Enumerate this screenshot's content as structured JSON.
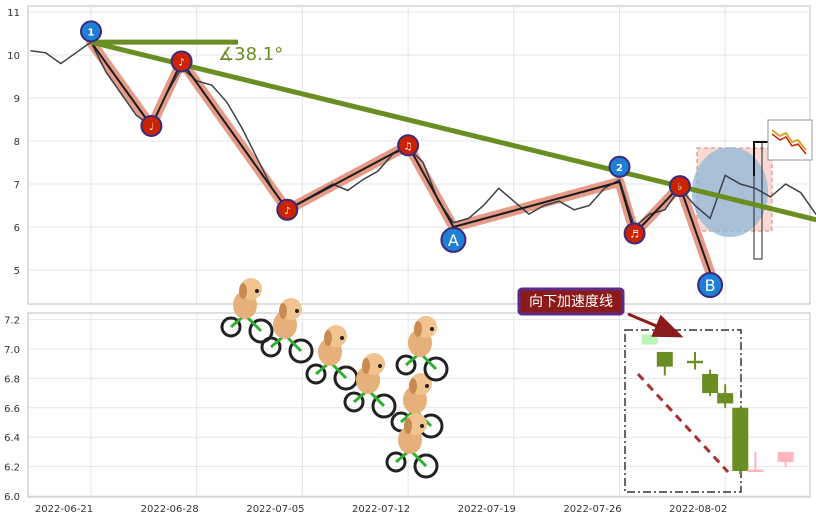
{
  "colors": {
    "price_line": "#3b3f46",
    "wave_outline": "#e59b88",
    "wave_line": "#1c1c1c",
    "trendline": "#6b8e23",
    "marker_red": "#cc2200",
    "marker_blue": "#1f7fd6",
    "annotation_bg": "#8b1a1a",
    "annotation_border": "#5b2a8a",
    "candle_green": "#6b8e23",
    "candle_pink": "#ffb6c1",
    "candle_light_green": "#b9f5b9",
    "highlight_blue": "#8fb7d8",
    "highlight_red": "#f7c9c0"
  },
  "chart_data": [
    {
      "type": "line",
      "panel": "upper",
      "y_ticks": [
        "5",
        "6",
        "7",
        "8",
        "9",
        "10",
        "11"
      ],
      "ylim": [
        4.2,
        11.0
      ],
      "x_range": [
        "2022-06-17",
        "2022-08-10"
      ],
      "grid": true,
      "series": [
        {
          "values": [
            [
              "2022-06-17",
              10.1
            ],
            [
              "2022-06-18",
              10.05
            ],
            [
              "2022-06-19",
              9.8
            ],
            [
              "2022-06-20",
              10.05
            ],
            [
              "2022-06-21",
              10.3
            ],
            [
              "2022-06-22",
              9.6
            ],
            [
              "2022-06-23",
              9.1
            ],
            [
              "2022-06-24",
              8.6
            ],
            [
              "2022-06-25",
              8.35
            ],
            [
              "2022-06-26",
              9.1
            ],
            [
              "2022-06-27",
              9.7
            ],
            [
              "2022-06-28",
              9.4
            ],
            [
              "2022-06-29",
              9.3
            ],
            [
              "2022-06-30",
              8.9
            ],
            [
              "2022-07-01",
              8.3
            ],
            [
              "2022-07-02",
              7.6
            ],
            [
              "2022-07-03",
              6.9
            ],
            [
              "2022-07-04",
              6.4
            ],
            [
              "2022-07-05",
              6.6
            ],
            [
              "2022-07-06",
              6.8
            ],
            [
              "2022-07-07",
              7.0
            ],
            [
              "2022-07-08",
              6.85
            ],
            [
              "2022-07-09",
              7.1
            ],
            [
              "2022-07-10",
              7.3
            ],
            [
              "2022-07-11",
              7.7
            ],
            [
              "2022-07-12",
              7.85
            ],
            [
              "2022-07-13",
              7.5
            ],
            [
              "2022-07-14",
              6.6
            ],
            [
              "2022-07-15",
              6.1
            ],
            [
              "2022-07-16",
              6.2
            ],
            [
              "2022-07-17",
              6.5
            ],
            [
              "2022-07-18",
              6.9
            ],
            [
              "2022-07-19",
              6.6
            ],
            [
              "2022-07-20",
              6.3
            ],
            [
              "2022-07-21",
              6.5
            ],
            [
              "2022-07-22",
              6.6
            ],
            [
              "2022-07-23",
              6.4
            ],
            [
              "2022-07-24",
              6.5
            ],
            [
              "2022-07-25",
              6.9
            ],
            [
              "2022-07-26",
              7.1
            ],
            [
              "2022-07-27",
              6.0
            ],
            [
              "2022-07-28",
              6.3
            ],
            [
              "2022-07-29",
              6.4
            ],
            [
              "2022-07-30",
              6.9
            ],
            [
              "2022-07-31",
              6.5
            ],
            [
              "2022-08-01",
              6.2
            ],
            [
              "2022-08-02",
              7.2
            ],
            [
              "2022-08-03",
              7.0
            ],
            [
              "2022-08-04",
              6.9
            ],
            [
              "2022-08-05",
              6.7
            ],
            [
              "2022-08-06",
              7.0
            ],
            [
              "2022-08-07",
              6.8
            ],
            [
              "2022-08-08",
              6.3
            ],
            [
              "2022-08-09",
              6.1
            ],
            [
              "2022-08-10",
              6.2
            ]
          ]
        }
      ],
      "wave_points": [
        [
          "2022-06-21",
          10.3
        ],
        [
          "2022-06-25",
          8.35
        ],
        [
          "2022-06-27",
          9.85
        ],
        [
          "2022-07-04",
          6.4
        ],
        [
          "2022-07-12",
          7.9
        ],
        [
          "2022-07-15",
          6.0
        ],
        [
          "2022-07-26",
          7.05
        ],
        [
          "2022-07-27",
          5.85
        ],
        [
          "2022-07-30",
          6.95
        ],
        [
          "2022-08-01",
          4.95
        ]
      ],
      "trendline": [
        [
          "2022-06-21",
          10.3
        ],
        [
          "2022-08-10",
          6.0
        ]
      ],
      "angle_label": "∡38.1°",
      "markers": [
        {
          "label": "1",
          "style": "blue",
          "date": "2022-06-21",
          "value": 10.55
        },
        {
          "label": "♩",
          "style": "red",
          "date": "2022-06-25",
          "value": 8.35
        },
        {
          "label": "♪",
          "style": "red",
          "date": "2022-06-27",
          "value": 9.85
        },
        {
          "label": "♪",
          "style": "red",
          "date": "2022-07-04",
          "value": 6.4
        },
        {
          "label": "♫",
          "style": "red",
          "date": "2022-07-12",
          "value": 7.9
        },
        {
          "label": "A",
          "style": "blue-big",
          "date": "2022-07-15",
          "value": 5.7
        },
        {
          "label": "2",
          "style": "blue",
          "date": "2022-07-26",
          "value": 7.4
        },
        {
          "label": "♬",
          "style": "red",
          "date": "2022-07-27",
          "value": 5.85
        },
        {
          "label": "♭",
          "style": "red",
          "date": "2022-07-30",
          "value": 6.95
        },
        {
          "label": "B",
          "style": "blue-big",
          "date": "2022-08-01",
          "value": 4.65
        }
      ]
    },
    {
      "type": "candlestick",
      "panel": "lower",
      "y_ticks": [
        "6.0",
        "6.2",
        "6.4",
        "6.6",
        "6.8",
        "7.0",
        "7.2"
      ],
      "ylim": [
        6.0,
        7.25
      ],
      "x_ticks": [
        "2022-06-21",
        "2022-06-28",
        "2022-07-05",
        "2022-07-12",
        "2022-07-19",
        "2022-07-26",
        "2022-08-02"
      ],
      "grid": true,
      "candles": [
        {
          "date": "2022-07-28",
          "open": 7.03,
          "close": 7.1,
          "high": 7.1,
          "low": 7.03,
          "style": "light-green"
        },
        {
          "date": "2022-07-29",
          "open": 6.88,
          "close": 6.98,
          "high": 6.98,
          "low": 6.82,
          "style": "green"
        },
        {
          "date": "2022-07-31",
          "open": 6.92,
          "close": 6.92,
          "high": 6.98,
          "low": 6.86,
          "style": "green"
        },
        {
          "date": "2022-08-01",
          "open": 6.83,
          "close": 6.7,
          "high": 6.86,
          "low": 6.68,
          "style": "green"
        },
        {
          "date": "2022-08-02",
          "open": 6.7,
          "close": 6.63,
          "high": 6.76,
          "low": 6.6,
          "style": "green"
        },
        {
          "date": "2022-08-03",
          "open": 6.6,
          "close": 6.17,
          "high": 6.6,
          "low": 6.15,
          "style": "green"
        },
        {
          "date": "2022-08-04",
          "open": 6.18,
          "close": 6.17,
          "high": 6.3,
          "low": 6.17,
          "style": "pink"
        },
        {
          "date": "2022-08-06",
          "open": 6.3,
          "close": 6.23,
          "high": 6.3,
          "low": 6.2,
          "style": "pink"
        }
      ],
      "annotation": "向下加速度线"
    }
  ]
}
